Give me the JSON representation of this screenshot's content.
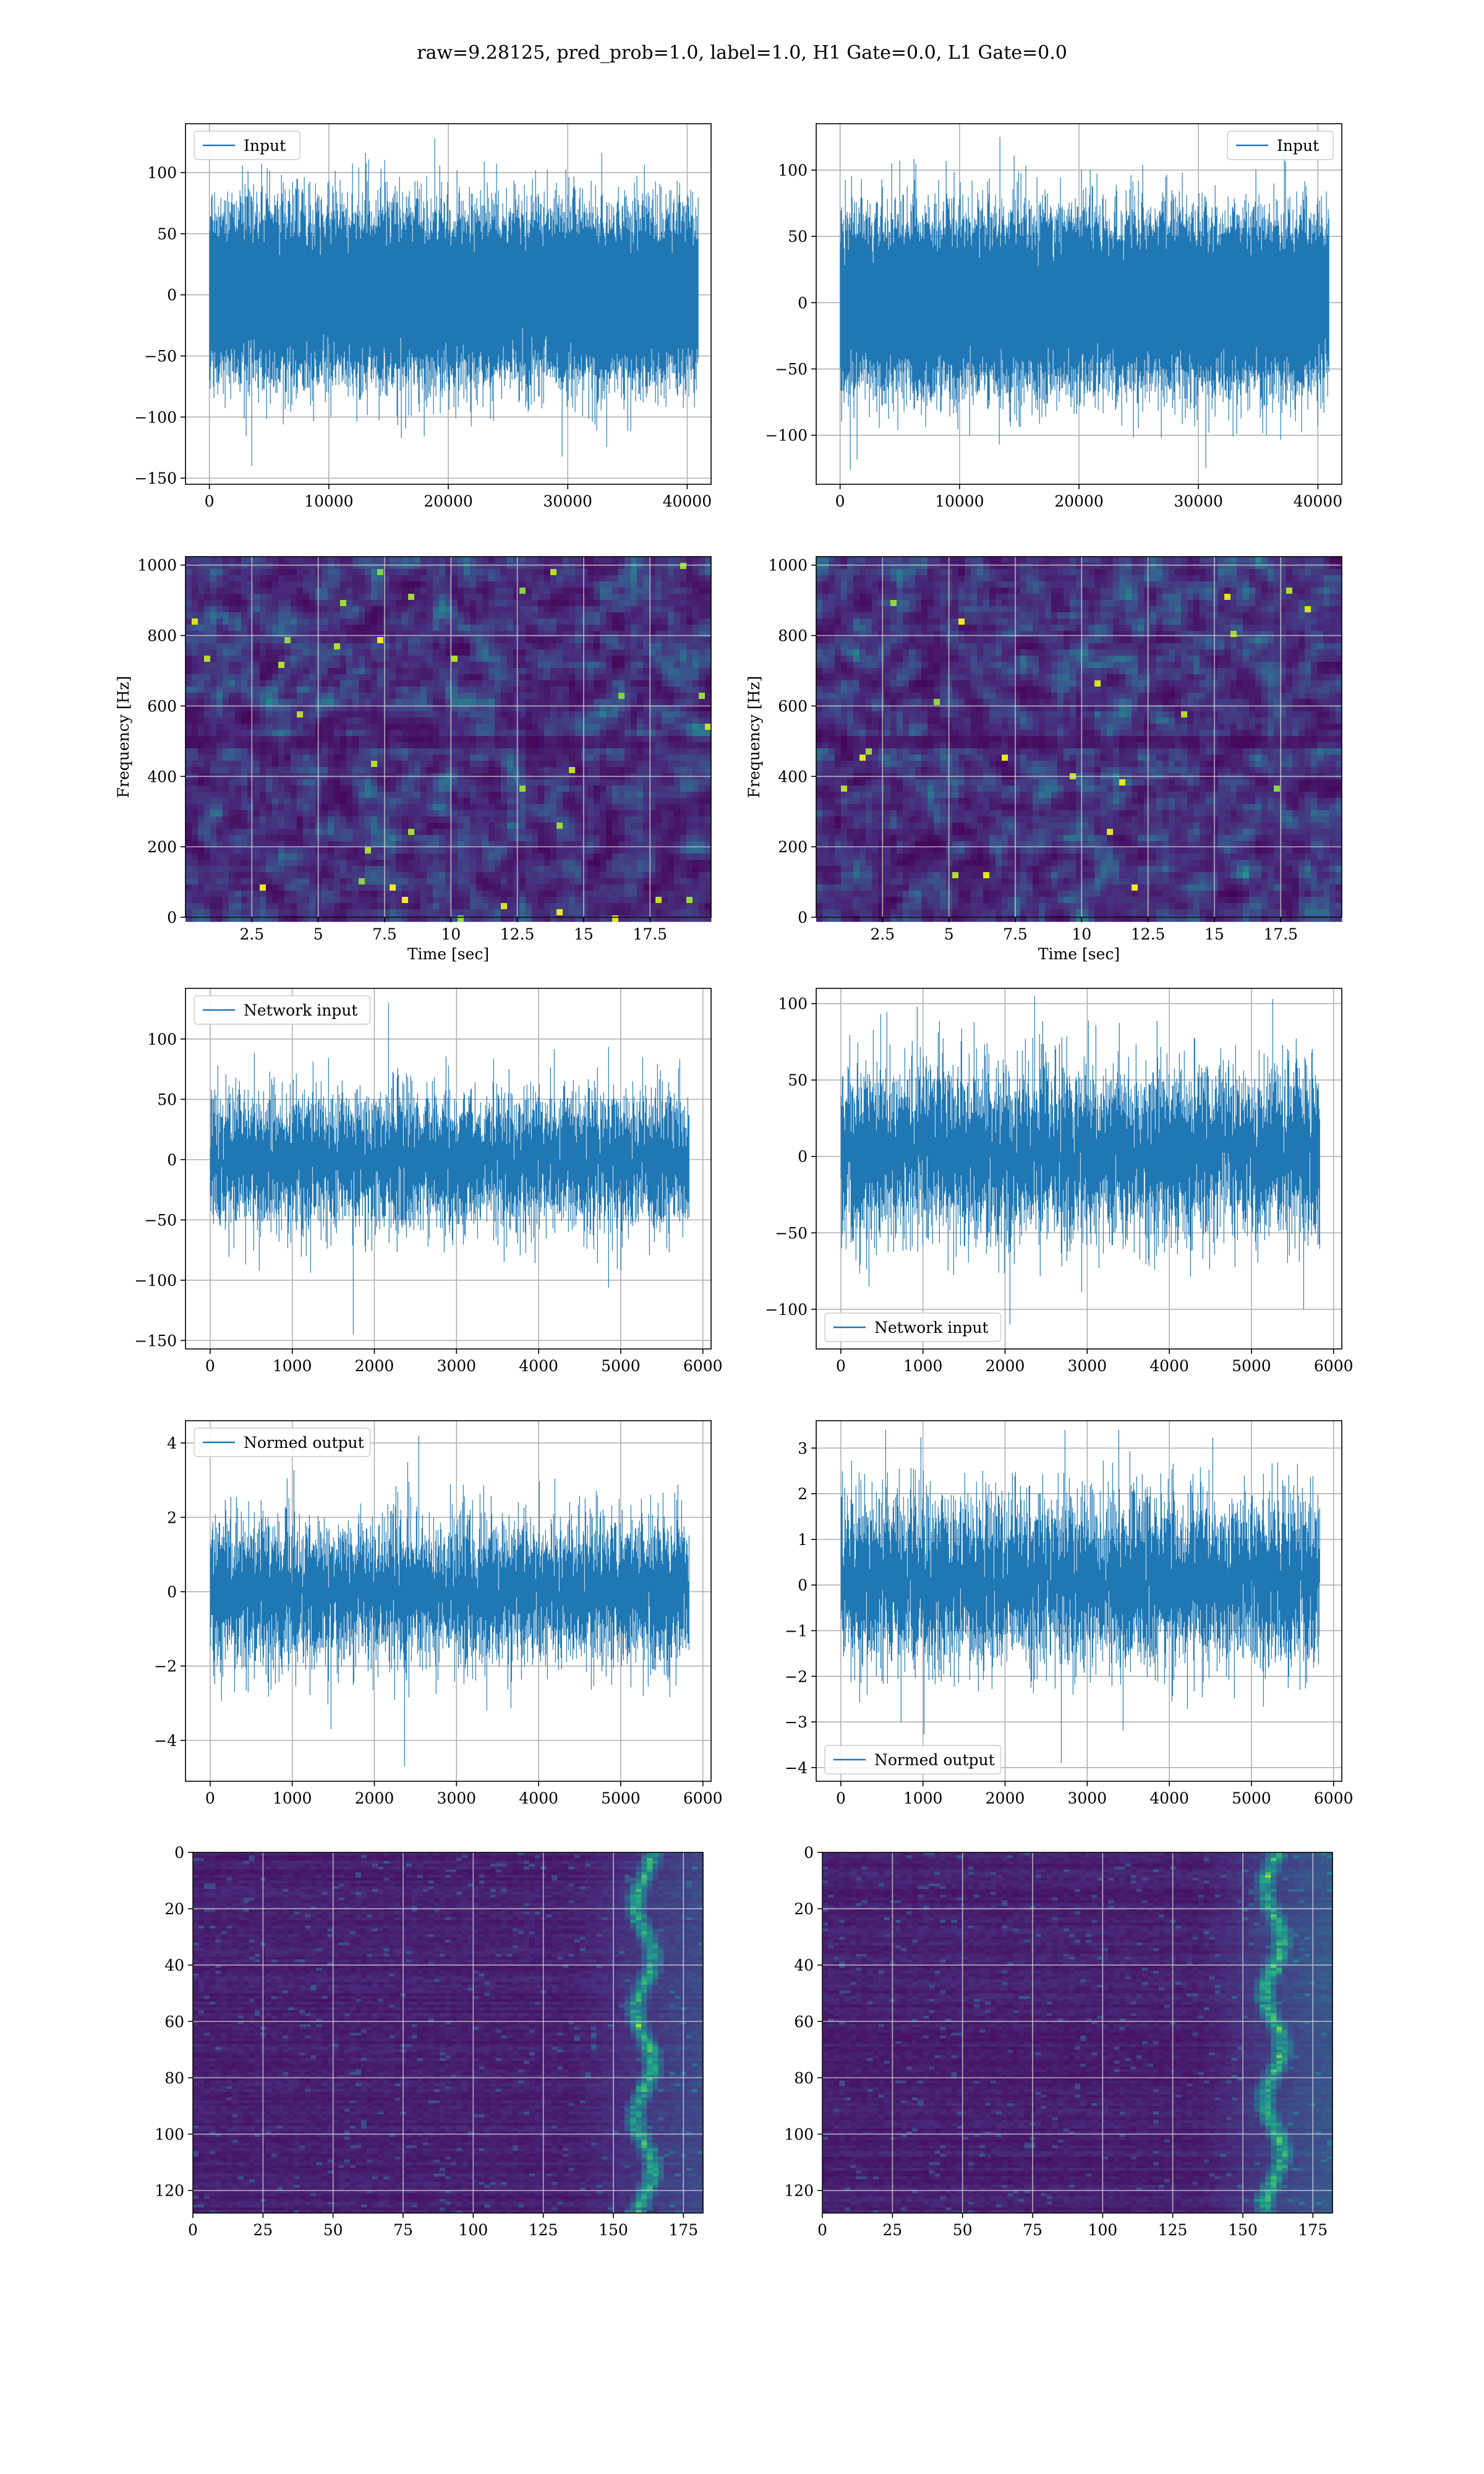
{
  "suptitle": "raw=9.28125, pred_prob=1.0, label=1.0, H1 Gate=0.0, L1 Gate=0.0",
  "line_color": "#1f77b4",
  "chart_data": [
    {
      "id": "p1",
      "type": "line",
      "series": [
        {
          "name": "Input"
        }
      ],
      "legend": "upper left",
      "xlim": [
        -2000,
        42000
      ],
      "ylim": [
        -155,
        140
      ],
      "x_ticks": [
        0,
        10000,
        20000,
        30000,
        40000
      ],
      "y_ticks": [
        -150,
        -100,
        -50,
        0,
        50,
        100
      ],
      "n_points": 40960,
      "band": [
        -62,
        62
      ],
      "extreme": [
        -140,
        128
      ],
      "grid": true
    },
    {
      "id": "p2",
      "type": "line",
      "series": [
        {
          "name": "Input"
        }
      ],
      "legend": "upper right",
      "xlim": [
        -2000,
        42000
      ],
      "ylim": [
        -137,
        135
      ],
      "x_ticks": [
        0,
        10000,
        20000,
        30000,
        40000
      ],
      "y_ticks": [
        -100,
        -50,
        0,
        50,
        100
      ],
      "n_points": 40960,
      "band": [
        -58,
        58
      ],
      "extreme": [
        -126,
        125
      ],
      "grid": true
    },
    {
      "id": "p3",
      "type": "heatmap",
      "xlabel": "Time [sec]",
      "ylabel": "Frequency [Hz]",
      "xlim": [
        0,
        19.8
      ],
      "ylim": [
        0,
        1024
      ],
      "x_ticks": [
        2.5,
        5.0,
        7.5,
        10.0,
        12.5,
        15.0,
        17.5
      ],
      "y_ticks": [
        0,
        200,
        400,
        600,
        800,
        1000
      ],
      "colormap": "viridis",
      "grid": true
    },
    {
      "id": "p4",
      "type": "heatmap",
      "xlabel": "Time [sec]",
      "ylabel": "Frequency [Hz]",
      "xlim": [
        0,
        19.8
      ],
      "ylim": [
        0,
        1024
      ],
      "x_ticks": [
        2.5,
        5.0,
        7.5,
        10.0,
        12.5,
        15.0,
        17.5
      ],
      "y_ticks": [
        0,
        200,
        400,
        600,
        800,
        1000
      ],
      "colormap": "viridis",
      "grid": true
    },
    {
      "id": "p5",
      "type": "line",
      "series": [
        {
          "name": "Network input"
        }
      ],
      "legend": "upper left",
      "xlim": [
        -300,
        6100
      ],
      "ylim": [
        -157,
        142
      ],
      "x_ticks": [
        0,
        1000,
        2000,
        3000,
        4000,
        5000,
        6000
      ],
      "y_ticks": [
        -150,
        -100,
        -50,
        0,
        50,
        100
      ],
      "n_points": 5836,
      "band": [
        -55,
        55
      ],
      "extreme": [
        -145,
        130
      ],
      "grid": true
    },
    {
      "id": "p6",
      "type": "line",
      "series": [
        {
          "name": "Network input"
        }
      ],
      "legend": "lower left",
      "xlim": [
        -300,
        6100
      ],
      "ylim": [
        -126,
        110
      ],
      "x_ticks": [
        0,
        1000,
        2000,
        3000,
        4000,
        5000,
        6000
      ],
      "y_ticks": [
        -100,
        -50,
        0,
        50,
        100
      ],
      "n_points": 5836,
      "band": [
        -50,
        55
      ],
      "extreme": [
        -110,
        105
      ],
      "grid": true
    },
    {
      "id": "p7",
      "type": "line",
      "series": [
        {
          "name": "Normed output"
        }
      ],
      "legend": "upper left",
      "xlim": [
        -300,
        6100
      ],
      "ylim": [
        -5.1,
        4.6
      ],
      "x_ticks": [
        0,
        1000,
        2000,
        3000,
        4000,
        5000,
        6000
      ],
      "y_ticks": [
        -4,
        -2,
        0,
        2,
        4
      ],
      "n_points": 5836,
      "band": [
        -1.9,
        1.9
      ],
      "extreme": [
        -4.7,
        4.2
      ],
      "grid": true
    },
    {
      "id": "p8",
      "type": "line",
      "series": [
        {
          "name": "Normed output"
        }
      ],
      "legend": "lower left",
      "xlim": [
        -300,
        6100
      ],
      "ylim": [
        -4.3,
        3.6
      ],
      "x_ticks": [
        0,
        1000,
        2000,
        3000,
        4000,
        5000,
        6000
      ],
      "y_ticks": [
        -4,
        -3,
        -2,
        -1,
        0,
        1,
        2,
        3
      ],
      "n_points": 5836,
      "band": [
        -1.6,
        1.8
      ],
      "extreme": [
        -3.9,
        3.4
      ],
      "grid": true
    },
    {
      "id": "p9",
      "type": "heatmap",
      "xlim": [
        0,
        182
      ],
      "ylim": [
        128,
        0
      ],
      "x_ticks": [
        0,
        25,
        50,
        75,
        100,
        125,
        150,
        175
      ],
      "y_ticks": [
        0,
        20,
        40,
        60,
        80,
        100,
        120
      ],
      "colormap": "viridis",
      "grid": true
    },
    {
      "id": "p10",
      "type": "heatmap",
      "xlim": [
        0,
        182
      ],
      "ylim": [
        128,
        0
      ],
      "x_ticks": [
        0,
        25,
        50,
        75,
        100,
        125,
        150,
        175
      ],
      "y_ticks": [
        0,
        20,
        40,
        60,
        80,
        100,
        120
      ],
      "colormap": "viridis",
      "grid": true
    }
  ]
}
